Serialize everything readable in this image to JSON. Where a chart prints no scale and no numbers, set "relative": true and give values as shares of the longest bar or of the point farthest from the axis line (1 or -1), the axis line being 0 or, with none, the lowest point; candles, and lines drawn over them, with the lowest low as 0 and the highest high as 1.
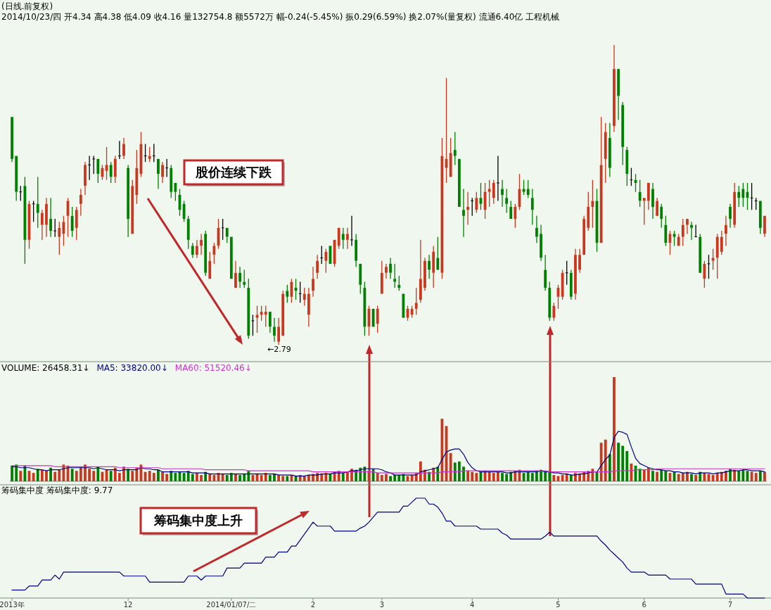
{
  "chart_data": [
    {
      "type": "candlestick",
      "relative": true,
      "tick_labels": false,
      "title": "(日线.前复权)",
      "subtitle": "2014/10/23/四 开4.34 高4.38 低4.09 收4.16 量132754.8 额5572万 幅-0.24(-5.45%) 振0.29(6.59%) 换2.07%(量复权) 流通6.40亿 工程机械",
      "annotations": [
        "股价连续下跌",
        "←2.79"
      ],
      "categories": [
        null,
        null,
        null,
        null,
        null,
        null,
        null,
        null,
        null,
        null,
        null,
        null,
        null,
        null,
        null,
        null,
        null,
        null,
        null,
        null,
        null,
        null,
        null,
        null,
        null,
        null,
        null,
        null,
        null,
        null,
        null,
        null,
        null,
        null,
        null,
        null,
        null,
        null,
        null,
        null,
        null,
        null,
        null,
        null,
        null,
        null,
        null,
        null,
        null,
        null,
        null,
        null,
        null,
        null,
        null,
        null,
        null,
        null,
        null,
        null,
        null,
        null,
        null,
        null,
        null,
        null,
        null,
        null,
        null,
        null,
        null,
        null,
        null,
        null,
        null,
        null,
        null,
        null,
        null,
        null,
        null,
        null,
        null,
        null,
        null,
        null,
        null,
        null,
        null,
        null,
        null,
        null,
        null,
        null,
        null,
        null,
        null,
        null,
        null,
        null,
        null,
        null,
        null,
        null,
        null,
        null,
        null,
        null,
        null,
        null,
        null,
        null,
        null,
        null,
        null,
        null,
        null,
        null,
        null,
        null,
        null,
        null,
        null,
        null,
        null,
        null,
        null,
        null,
        null,
        null,
        null,
        null,
        null,
        null,
        null,
        null,
        null,
        null,
        null,
        null,
        null,
        null,
        null,
        null,
        null,
        null,
        null,
        null,
        null,
        null,
        null,
        null,
        null,
        null,
        null,
        null,
        null,
        null,
        null,
        null,
        null,
        null,
        null,
        null,
        null,
        null,
        null,
        null,
        null,
        null,
        null,
        null,
        null,
        null,
        null,
        null
      ],
      "ohlc": [
        [
          0.76,
          0.76,
          0.61,
          0.62
        ],
        [
          0.63,
          0.63,
          0.48,
          0.51
        ],
        [
          0.51,
          0.53,
          0.48,
          0.51
        ],
        [
          0.53,
          0.56,
          0.27,
          0.35
        ],
        [
          0.35,
          0.48,
          0.32,
          0.47
        ],
        [
          0.47,
          0.48,
          0.41,
          0.47
        ],
        [
          0.47,
          0.56,
          0.39,
          0.44
        ],
        [
          0.4,
          0.45,
          0.35,
          0.44
        ],
        [
          0.4,
          0.49,
          0.36,
          0.47
        ],
        [
          0.42,
          0.49,
          0.36,
          0.38
        ],
        [
          0.38,
          0.42,
          0.36,
          0.38
        ],
        [
          0.36,
          0.41,
          0.3,
          0.39
        ],
        [
          0.37,
          0.43,
          0.33,
          0.41
        ],
        [
          0.43,
          0.49,
          0.36,
          0.48
        ],
        [
          0.43,
          0.46,
          0.36,
          0.38
        ],
        [
          0.39,
          0.46,
          0.35,
          0.45
        ],
        [
          0.47,
          0.52,
          0.43,
          0.5
        ],
        [
          0.53,
          0.61,
          0.5,
          0.6
        ],
        [
          0.6,
          0.63,
          0.55,
          0.6
        ],
        [
          0.62,
          0.63,
          0.57,
          0.62
        ],
        [
          0.62,
          0.62,
          0.54,
          0.57
        ],
        [
          0.56,
          0.6,
          0.55,
          0.59
        ],
        [
          0.58,
          0.66,
          0.55,
          0.6
        ],
        [
          0.6,
          0.61,
          0.54,
          0.56
        ],
        [
          0.56,
          0.63,
          0.54,
          0.62
        ],
        [
          0.63,
          0.68,
          0.62,
          0.63
        ],
        [
          0.63,
          0.69,
          0.62,
          0.67
        ],
        [
          0.59,
          0.6,
          0.36,
          0.42
        ],
        [
          0.37,
          0.55,
          0.37,
          0.53
        ],
        [
          0.5,
          0.65,
          0.47,
          0.59
        ],
        [
          0.57,
          0.71,
          0.56,
          0.67
        ],
        [
          0.63,
          0.67,
          0.61,
          0.63
        ],
        [
          0.62,
          0.66,
          0.61,
          0.63
        ],
        [
          0.63,
          0.67,
          0.61,
          0.63
        ],
        [
          0.62,
          0.62,
          0.52,
          0.57
        ],
        [
          0.56,
          0.61,
          0.54,
          0.6
        ],
        [
          0.59,
          0.62,
          0.56,
          0.59
        ],
        [
          0.59,
          0.6,
          0.49,
          0.51
        ],
        [
          0.54,
          0.54,
          0.48,
          0.51
        ],
        [
          0.5,
          0.52,
          0.43,
          0.45
        ],
        [
          0.47,
          0.48,
          0.41,
          0.42
        ],
        [
          0.42,
          0.43,
          0.32,
          0.35
        ],
        [
          0.33,
          0.34,
          0.29,
          0.3
        ],
        [
          0.3,
          0.35,
          0.29,
          0.33
        ],
        [
          0.33,
          0.37,
          0.3,
          0.35
        ],
        [
          0.37,
          0.38,
          0.23,
          0.24
        ],
        [
          0.22,
          0.31,
          0.22,
          0.28
        ],
        [
          0.3,
          0.34,
          0.27,
          0.33
        ],
        [
          0.33,
          0.42,
          0.32,
          0.39
        ],
        [
          0.39,
          0.42,
          0.35,
          0.39
        ],
        [
          0.39,
          0.39,
          0.34,
          0.36
        ],
        [
          0.36,
          0.36,
          0.22,
          0.22
        ],
        [
          0.19,
          0.28,
          0.19,
          0.24
        ],
        [
          0.24,
          0.26,
          0.19,
          0.21
        ],
        [
          0.21,
          0.25,
          0.19,
          0.2
        ],
        [
          0.19,
          0.22,
          0.02,
          0.03
        ],
        [
          0.08,
          0.1,
          0.03,
          0.08
        ],
        [
          0.09,
          0.13,
          0.04,
          0.1
        ],
        [
          0.1,
          0.13,
          0.08,
          0.11
        ],
        [
          0.1,
          0.13,
          0.06,
          0.11
        ],
        [
          0.11,
          0.11,
          0.04,
          0.06
        ],
        [
          0.06,
          0.09,
          0.01,
          0.03
        ],
        [
          0.01,
          0.09,
          0,
          0.06
        ],
        [
          0.03,
          0.18,
          0.03,
          0.17
        ],
        [
          0.18,
          0.2,
          0.14,
          0.16
        ],
        [
          0.16,
          0.22,
          0.14,
          0.21
        ],
        [
          0.19,
          0.22,
          0.15,
          0.18
        ],
        [
          0.17,
          0.21,
          0.14,
          0.17
        ],
        [
          0.15,
          0.19,
          0.13,
          0.17
        ],
        [
          0.1,
          0.19,
          0.06,
          0.17
        ],
        [
          0.18,
          0.26,
          0.16,
          0.22
        ],
        [
          0.24,
          0.3,
          0.22,
          0.28
        ],
        [
          0.29,
          0.33,
          0.27,
          0.29
        ],
        [
          0.28,
          0.32,
          0.24,
          0.31
        ],
        [
          0.33,
          0.33,
          0.27,
          0.27
        ],
        [
          0.27,
          0.35,
          0.26,
          0.35
        ],
        [
          0.33,
          0.39,
          0.32,
          0.39
        ],
        [
          0.37,
          0.39,
          0.32,
          0.35
        ],
        [
          0.35,
          0.39,
          0.32,
          0.37
        ],
        [
          0.35,
          0.43,
          0.33,
          0.35
        ],
        [
          0.35,
          0.37,
          0.26,
          0.28
        ],
        [
          0.27,
          0.27,
          0.17,
          0.2
        ],
        [
          0.19,
          0.21,
          0.03,
          0.06
        ],
        [
          0.06,
          0.13,
          0.03,
          0.12
        ],
        [
          0.12,
          0.12,
          0.06,
          0.06
        ],
        [
          0.07,
          0.13,
          0.04,
          0.12
        ],
        [
          0.17,
          0.28,
          0.17,
          0.24
        ],
        [
          0.24,
          0.27,
          0.22,
          0.26
        ],
        [
          0.27,
          0.29,
          0.22,
          0.24
        ],
        [
          0.22,
          0.27,
          0.19,
          0.21
        ],
        [
          0.2,
          0.23,
          0.18,
          0.19
        ],
        [
          0.17,
          0.17,
          0.09,
          0.09
        ],
        [
          0.09,
          0.13,
          0.08,
          0.12
        ],
        [
          0.1,
          0.13,
          0.09,
          0.12
        ],
        [
          0.12,
          0.19,
          0.1,
          0.14
        ],
        [
          0.15,
          0.35,
          0.14,
          0.22
        ],
        [
          0.19,
          0.29,
          0.18,
          0.28
        ],
        [
          0.28,
          0.3,
          0.22,
          0.25
        ],
        [
          0.24,
          0.33,
          0.19,
          0.31
        ],
        [
          0.29,
          0.36,
          0.25,
          0.25
        ],
        [
          0.24,
          0.69,
          0.22,
          0.63
        ],
        [
          0.59,
          0.89,
          0.54,
          0.62
        ],
        [
          0.56,
          0.69,
          0.56,
          0.64
        ],
        [
          0.65,
          0.71,
          0.6,
          0.63
        ],
        [
          0.62,
          0.62,
          0.46,
          0.46
        ],
        [
          0.45,
          0.52,
          0.36,
          0.43
        ],
        [
          0.45,
          0.51,
          0.4,
          0.46
        ],
        [
          0.48,
          0.49,
          0.43,
          0.48
        ],
        [
          0.45,
          0.51,
          0.44,
          0.49
        ],
        [
          0.49,
          0.54,
          0.45,
          0.47
        ],
        [
          0.45,
          0.54,
          0.42,
          0.51
        ],
        [
          0.51,
          0.55,
          0.46,
          0.52
        ],
        [
          0.49,
          0.55,
          0.47,
          0.54
        ],
        [
          0.54,
          0.63,
          0.48,
          0.54
        ],
        [
          0.52,
          0.55,
          0.46,
          0.5
        ],
        [
          0.49,
          0.52,
          0.44,
          0.47
        ],
        [
          0.46,
          0.48,
          0.42,
          0.42
        ],
        [
          0.42,
          0.47,
          0.39,
          0.46
        ],
        [
          0.46,
          0.57,
          0.45,
          0.52
        ],
        [
          0.52,
          0.55,
          0.5,
          0.51
        ],
        [
          0.52,
          0.55,
          0.49,
          0.5
        ],
        [
          0.49,
          0.52,
          0.4,
          0.45
        ],
        [
          0.39,
          0.43,
          0.34,
          0.36
        ],
        [
          0.37,
          0.4,
          0.28,
          0.29
        ],
        [
          0.25,
          0.3,
          0.18,
          0.19
        ],
        [
          0.19,
          0.21,
          0.08,
          0.09
        ],
        [
          0.09,
          0.14,
          0.08,
          0.13
        ],
        [
          0.16,
          0.2,
          0.12,
          0.19
        ],
        [
          0.16,
          0.25,
          0.15,
          0.24
        ],
        [
          0.24,
          0.28,
          0.2,
          0.24
        ],
        [
          0.24,
          0.25,
          0.15,
          0.16
        ],
        [
          0.17,
          0.32,
          0.15,
          0.3
        ],
        [
          0.25,
          0.32,
          0.24,
          0.3
        ],
        [
          0.3,
          0.43,
          0.3,
          0.42
        ],
        [
          0.39,
          0.51,
          0.38,
          0.46
        ],
        [
          0.46,
          0.55,
          0.39,
          0.48
        ],
        [
          0.48,
          0.52,
          0.31,
          0.34
        ],
        [
          0.34,
          0.76,
          0.34,
          0.6
        ],
        [
          0.62,
          0.74,
          0.54,
          0.71
        ],
        [
          0.69,
          0.74,
          0.56,
          0.59
        ],
        [
          0.73,
          1.0,
          0.71,
          0.92
        ],
        [
          0.92,
          0.92,
          0.75,
          0.83
        ],
        [
          0.8,
          0.81,
          0.6,
          0.66
        ],
        [
          0.65,
          0.66,
          0.53,
          0.57
        ],
        [
          0.55,
          0.59,
          0.53,
          0.55
        ],
        [
          0.55,
          0.57,
          0.51,
          0.54
        ],
        [
          0.51,
          0.55,
          0.46,
          0.48
        ],
        [
          0.48,
          0.49,
          0.4,
          0.49
        ],
        [
          0.48,
          0.54,
          0.45,
          0.54
        ],
        [
          0.52,
          0.54,
          0.42,
          0.46
        ],
        [
          0.43,
          0.49,
          0.43,
          0.48
        ],
        [
          0.46,
          0.47,
          0.39,
          0.42
        ],
        [
          0.4,
          0.43,
          0.33,
          0.34
        ],
        [
          0.34,
          0.38,
          0.3,
          0.37
        ],
        [
          0.37,
          0.38,
          0.33,
          0.36
        ],
        [
          0.33,
          0.37,
          0.33,
          0.36
        ],
        [
          0.36,
          0.42,
          0.33,
          0.4
        ],
        [
          0.4,
          0.42,
          0.37,
          0.42
        ],
        [
          0.4,
          0.41,
          0.35,
          0.39
        ],
        [
          0.36,
          0.4,
          0.36,
          0.36
        ],
        [
          0.36,
          0.37,
          0.24,
          0.24
        ],
        [
          0.22,
          0.28,
          0.19,
          0.27
        ],
        [
          0.27,
          0.3,
          0.22,
          0.27
        ],
        [
          0.28,
          0.32,
          0.25,
          0.29
        ],
        [
          0.29,
          0.37,
          0.22,
          0.36
        ],
        [
          0.31,
          0.38,
          0.3,
          0.36
        ],
        [
          0.37,
          0.43,
          0.33,
          0.4
        ],
        [
          0.46,
          0.47,
          0.39,
          0.42
        ],
        [
          0.4,
          0.54,
          0.39,
          0.51
        ],
        [
          0.51,
          0.53,
          0.46,
          0.49
        ],
        [
          0.52,
          0.54,
          0.46,
          0.49
        ],
        [
          0.51,
          0.54,
          0.45,
          0.49
        ],
        [
          0.49,
          0.54,
          0.45,
          0.49
        ],
        [
          0.48,
          0.49,
          0.45,
          0.48
        ],
        [
          0.48,
          0.48,
          0.37,
          0.39
        ],
        [
          0.37,
          0.43,
          0.36,
          0.43
        ]
      ]
    },
    {
      "type": "bar",
      "relative": true,
      "tick_labels": false,
      "title": "VOLUME: 26458.31↓",
      "annotations": [
        "MA5: 33820.00↓",
        "MA60: 51520.46↓"
      ],
      "categories": [
        null,
        null,
        null,
        null,
        null,
        null,
        null,
        null,
        null,
        null,
        null,
        null,
        null,
        null,
        null,
        null,
        null,
        null,
        null,
        null,
        null,
        null,
        null,
        null,
        null,
        null,
        null,
        null,
        null,
        null,
        null,
        null,
        null,
        null,
        null,
        null,
        null,
        null,
        null,
        null,
        null,
        null,
        null,
        null,
        null,
        null,
        null,
        null,
        null,
        null,
        null,
        null,
        null,
        null,
        null,
        null,
        null,
        null,
        null,
        null,
        null,
        null,
        null,
        null,
        null,
        null,
        null,
        null,
        null,
        null,
        null,
        null,
        null,
        null,
        null,
        null,
        null,
        null,
        null,
        null,
        null,
        null,
        null,
        null,
        null,
        null,
        null,
        null,
        null,
        null,
        null,
        null,
        null,
        null,
        null,
        null,
        null,
        null,
        null,
        null,
        null,
        null,
        null,
        null,
        null,
        null,
        null,
        null,
        null,
        null,
        null,
        null,
        null,
        null,
        null,
        null,
        null,
        null,
        null,
        null,
        null,
        null,
        null,
        null,
        null,
        null,
        null,
        null,
        null,
        null,
        null,
        null,
        null,
        null,
        null,
        null,
        null,
        null,
        null,
        null,
        null,
        null,
        null,
        null,
        null,
        null,
        null,
        null,
        null,
        null,
        null,
        null,
        null,
        null,
        null,
        null,
        null,
        null,
        null,
        null,
        null,
        null,
        null,
        null,
        null,
        null,
        null,
        null,
        null,
        null,
        null,
        null,
        null,
        null,
        null,
        null
      ],
      "series": [
        {
          "colors": [
            "#008000",
            "#008000",
            "#c8371e",
            "#008000",
            "#c8371e",
            "#c8371e",
            "#008000",
            "#c8371e",
            "#c8371e",
            "#008000",
            "#c8371e",
            "#c8371e",
            "#c8371e",
            "#c8371e",
            "#008000",
            "#c8371e",
            "#c8371e",
            "#c8371e",
            "#c8371e",
            "#c8371e",
            "#008000",
            "#c8371e",
            "#c8371e",
            "#008000",
            "#c8371e",
            "#c8371e",
            "#c8371e",
            "#008000",
            "#c8371e",
            "#c8371e",
            "#c8371e",
            "#c8371e",
            "#c8371e",
            "#c8371e",
            "#008000",
            "#c8371e",
            "#c8371e",
            "#008000",
            "#008000",
            "#008000",
            "#008000",
            "#008000",
            "#008000",
            "#c8371e",
            "#c8371e",
            "#008000",
            "#c8371e",
            "#c8371e",
            "#c8371e",
            "#c8371e",
            "#008000",
            "#008000",
            "#c8371e",
            "#008000",
            "#008000",
            "#008000",
            "#c8371e",
            "#c8371e",
            "#c8371e",
            "#c8371e",
            "#008000",
            "#008000",
            "#c8371e",
            "#c8371e",
            "#008000",
            "#c8371e",
            "#008000",
            "#c8371e",
            "#c8371e",
            "#c8371e",
            "#c8371e",
            "#c8371e",
            "#c8371e",
            "#c8371e",
            "#008000",
            "#c8371e",
            "#c8371e",
            "#008000",
            "#c8371e",
            "#c8371e",
            "#008000",
            "#008000",
            "#008000",
            "#c8371e",
            "#008000",
            "#c8371e",
            "#c8371e",
            "#c8371e",
            "#008000",
            "#008000",
            "#008000",
            "#008000",
            "#c8371e",
            "#c8371e",
            "#c8371e",
            "#c8371e",
            "#c8371e",
            "#008000",
            "#c8371e",
            "#008000",
            "#c8371e",
            "#c8371e",
            "#c8371e",
            "#008000",
            "#008000",
            "#008000",
            "#c8371e",
            "#c8371e",
            "#c8371e",
            "#008000",
            "#c8371e",
            "#c8371e",
            "#c8371e",
            "#c8371e",
            "#008000",
            "#008000",
            "#008000",
            "#c8371e",
            "#c8371e",
            "#008000",
            "#008000",
            "#008000",
            "#008000",
            "#008000",
            "#008000",
            "#008000",
            "#c8371e",
            "#c8371e",
            "#c8371e",
            "#c8371e",
            "#008000",
            "#c8371e",
            "#c8371e",
            "#c8371e",
            "#c8371e",
            "#c8371e",
            "#008000",
            "#c8371e",
            "#c8371e",
            "#008000",
            "#c8371e",
            "#008000",
            "#008000",
            "#008000",
            "#c8371e",
            "#008000",
            "#008000",
            "#c8371e",
            "#c8371e",
            "#008000",
            "#c8371e",
            "#008000",
            "#008000",
            "#c8371e",
            "#008000",
            "#c8371e",
            "#c8371e",
            "#c8371e",
            "#008000",
            "#c8371e",
            "#008000",
            "#c8371e",
            "#c8371e",
            "#c8371e",
            "#c8371e",
            "#c8371e",
            "#c8371e",
            "#008000",
            "#c8371e",
            "#008000",
            "#008000",
            "#008000",
            "#c8371e",
            "#c8371e",
            "#008000",
            "#c8371e"
          ],
          "values": [
            0.15,
            0.16,
            0.1,
            0.15,
            0.1,
            0.08,
            0.12,
            0.11,
            0.1,
            0.13,
            0.09,
            0.11,
            0.16,
            0.15,
            0.12,
            0.1,
            0.13,
            0.16,
            0.12,
            0.1,
            0.14,
            0.09,
            0.11,
            0.1,
            0.13,
            0.08,
            0.14,
            0.12,
            0.1,
            0.13,
            0.16,
            0.09,
            0.1,
            0.08,
            0.11,
            0.09,
            0.07,
            0.1,
            0.08,
            0.09,
            0.08,
            0.1,
            0.07,
            0.08,
            0.06,
            0.09,
            0.07,
            0.06,
            0.08,
            0.07,
            0.06,
            0.08,
            0.07,
            0.06,
            0.07,
            0.1,
            0.06,
            0.07,
            0.06,
            0.08,
            0.06,
            0.07,
            0.06,
            0.05,
            0.05,
            0.06,
            0.05,
            0.06,
            0.05,
            0.06,
            0.07,
            0.08,
            0.07,
            0.08,
            0.07,
            0.09,
            0.1,
            0.08,
            0.09,
            0.12,
            0.11,
            0.13,
            0.14,
            0.1,
            0.12,
            0.08,
            0.06,
            0.07,
            0.05,
            0.06,
            0.06,
            0.07,
            0.05,
            0.06,
            0.08,
            0.19,
            0.11,
            0.09,
            0.13,
            0.14,
            0.6,
            0.53,
            0.27,
            0.18,
            0.19,
            0.14,
            0.1,
            0.09,
            0.08,
            0.09,
            0.1,
            0.09,
            0.08,
            0.09,
            0.08,
            0.07,
            0.09,
            0.1,
            0.11,
            0.08,
            0.09,
            0.08,
            0.1,
            0.11,
            0.09,
            0.1,
            0.06,
            0.05,
            0.06,
            0.07,
            0.06,
            0.08,
            0.07,
            0.09,
            0.1,
            0.12,
            0.09,
            0.37,
            0.4,
            0.26,
            1.0,
            0.37,
            0.34,
            0.29,
            0.17,
            0.15,
            0.12,
            0.11,
            0.13,
            0.1,
            0.09,
            0.11,
            0.1,
            0.08,
            0.09,
            0.07,
            0.08,
            0.09,
            0.07,
            0.06,
            0.09,
            0.08,
            0.07,
            0.06,
            0.08,
            0.09,
            0.1,
            0.12,
            0.11,
            0.1,
            0.11,
            0.1,
            0.09,
            0.08,
            0.1,
            0.09
          ]
        },
        {
          "type": "line",
          "color": "#000080",
          "values": [
            0.14,
            0.14,
            0.13,
            0.13,
            0.13,
            0.12,
            0.11,
            0.11,
            0.1,
            0.11,
            0.11,
            0.11,
            0.12,
            0.13,
            0.13,
            0.13,
            0.13,
            0.13,
            0.13,
            0.12,
            0.13,
            0.12,
            0.11,
            0.11,
            0.11,
            0.1,
            0.11,
            0.11,
            0.11,
            0.11,
            0.13,
            0.12,
            0.12,
            0.11,
            0.11,
            0.09,
            0.09,
            0.09,
            0.09,
            0.09,
            0.09,
            0.09,
            0.08,
            0.08,
            0.08,
            0.08,
            0.07,
            0.07,
            0.07,
            0.07,
            0.07,
            0.07,
            0.07,
            0.07,
            0.07,
            0.07,
            0.07,
            0.07,
            0.07,
            0.07,
            0.07,
            0.07,
            0.06,
            0.06,
            0.06,
            0.06,
            0.05,
            0.05,
            0.05,
            0.06,
            0.06,
            0.06,
            0.07,
            0.07,
            0.07,
            0.08,
            0.08,
            0.08,
            0.09,
            0.1,
            0.1,
            0.11,
            0.12,
            0.12,
            0.12,
            0.12,
            0.11,
            0.09,
            0.08,
            0.06,
            0.06,
            0.06,
            0.06,
            0.06,
            0.06,
            0.09,
            0.1,
            0.11,
            0.12,
            0.13,
            0.21,
            0.28,
            0.3,
            0.31,
            0.31,
            0.26,
            0.18,
            0.13,
            0.1,
            0.09,
            0.09,
            0.09,
            0.09,
            0.09,
            0.09,
            0.08,
            0.08,
            0.09,
            0.09,
            0.09,
            0.09,
            0.09,
            0.09,
            0.1,
            0.09,
            0.09,
            0.08,
            0.08,
            0.07,
            0.07,
            0.06,
            0.06,
            0.07,
            0.07,
            0.08,
            0.09,
            0.09,
            0.15,
            0.21,
            0.25,
            0.42,
            0.48,
            0.47,
            0.45,
            0.33,
            0.22,
            0.17,
            0.15,
            0.13,
            0.12,
            0.11,
            0.11,
            0.1,
            0.1,
            0.09,
            0.09,
            0.08,
            0.08,
            0.08,
            0.07,
            0.08,
            0.08,
            0.08,
            0.07,
            0.08,
            0.08,
            0.09,
            0.1,
            0.1,
            0.1,
            0.11,
            0.11,
            0.1,
            0.1,
            0.1,
            0.09
          ]
        },
        {
          "type": "line",
          "color": "#cc33cc",
          "values": [
            0.15,
            0.15,
            0.15,
            0.15,
            0.15,
            0.15,
            0.15,
            0.15,
            0.15,
            0.15,
            0.14,
            0.14,
            0.14,
            0.14,
            0.14,
            0.14,
            0.14,
            0.14,
            0.14,
            0.14,
            0.14,
            0.14,
            0.14,
            0.14,
            0.14,
            0.13,
            0.13,
            0.13,
            0.13,
            0.13,
            0.13,
            0.13,
            0.13,
            0.13,
            0.13,
            0.12,
            0.12,
            0.12,
            0.12,
            0.12,
            0.12,
            0.12,
            0.12,
            0.12,
            0.12,
            0.11,
            0.11,
            0.11,
            0.11,
            0.11,
            0.11,
            0.11,
            0.11,
            0.11,
            0.11,
            0.1,
            0.1,
            0.1,
            0.1,
            0.1,
            0.1,
            0.1,
            0.1,
            0.1,
            0.1,
            0.1,
            0.1,
            0.1,
            0.1,
            0.1,
            0.09,
            0.09,
            0.09,
            0.09,
            0.09,
            0.09,
            0.09,
            0.09,
            0.09,
            0.09,
            0.09,
            0.09,
            0.09,
            0.09,
            0.09,
            0.08,
            0.08,
            0.08,
            0.08,
            0.08,
            0.08,
            0.08,
            0.08,
            0.08,
            0.08,
            0.08,
            0.08,
            0.08,
            0.08,
            0.08,
            0.09,
            0.09,
            0.09,
            0.09,
            0.09,
            0.1,
            0.1,
            0.1,
            0.1,
            0.1,
            0.1,
            0.1,
            0.1,
            0.1,
            0.1,
            0.1,
            0.1,
            0.1,
            0.1,
            0.1,
            0.1,
            0.1,
            0.1,
            0.1,
            0.1,
            0.09,
            0.09,
            0.09,
            0.09,
            0.09,
            0.09,
            0.09,
            0.09,
            0.09,
            0.09,
            0.09,
            0.09,
            0.09,
            0.09,
            0.09,
            0.1,
            0.1,
            0.1,
            0.1,
            0.1,
            0.11,
            0.11,
            0.11,
            0.11,
            0.11,
            0.12,
            0.12,
            0.12,
            0.12,
            0.12,
            0.12,
            0.12,
            0.12,
            0.12,
            0.12,
            0.12,
            0.12,
            0.12,
            0.12,
            0.12,
            0.12,
            0.12,
            0.12,
            0.12,
            0.12,
            0.12,
            0.12,
            0.12,
            0.12,
            0.12,
            0.12
          ]
        }
      ]
    },
    {
      "type": "line",
      "relative": true,
      "title": "筹码集中度 筹码集中度: 9.77",
      "annotations": [
        "筹码集中度上升"
      ],
      "color": "#000080",
      "categories": [
        "2013年",
        null,
        null,
        null,
        null,
        null,
        null,
        null,
        null,
        null,
        null,
        null,
        null,
        null,
        null,
        null,
        null,
        null,
        null,
        null,
        null,
        null,
        null,
        null,
        null,
        null,
        null,
        "12",
        null,
        null,
        null,
        null,
        null,
        null,
        null,
        null,
        null,
        null,
        null,
        null,
        null,
        null,
        null,
        null,
        null,
        null,
        null,
        null,
        null,
        null,
        null,
        "2014/01/07/二",
        null,
        null,
        null,
        null,
        null,
        null,
        null,
        null,
        null,
        null,
        null,
        null,
        null,
        null,
        null,
        null,
        null,
        null,
        "2",
        null,
        null,
        null,
        null,
        null,
        null,
        null,
        null,
        null,
        null,
        null,
        null,
        null,
        null,
        null,
        "3",
        null,
        null,
        null,
        null,
        null,
        null,
        null,
        null,
        null,
        null,
        null,
        null,
        null,
        null,
        null,
        null,
        null,
        null,
        null,
        null,
        "4",
        null,
        null,
        null,
        null,
        null,
        null,
        null,
        null,
        null,
        null,
        null,
        null,
        null,
        null,
        null,
        null,
        null,
        null,
        null,
        "5",
        null,
        null,
        null,
        null,
        null,
        null,
        null,
        null,
        null,
        null,
        null,
        null,
        null,
        null,
        null,
        null,
        null,
        null,
        null,
        "6",
        null,
        null,
        null,
        null,
        null,
        null,
        null,
        null,
        null,
        null,
        null,
        null,
        null,
        null,
        null,
        null,
        null,
        null,
        null,
        "7",
        null,
        null,
        null,
        null,
        null,
        null,
        null,
        null
      ],
      "values": [
        0.08,
        0.08,
        0.08,
        0.08,
        0.12,
        0.12,
        0.12,
        0.18,
        0.18,
        0.18,
        0.23,
        0.19,
        0.26,
        0.26,
        0.26,
        0.26,
        0.26,
        0.26,
        0.26,
        0.26,
        0.26,
        0.26,
        0.26,
        0.26,
        0.26,
        0.26,
        0.22,
        0.22,
        0.22,
        0.22,
        0.22,
        0.22,
        0.16,
        0.16,
        0.16,
        0.16,
        0.16,
        0.16,
        0.16,
        0.16,
        0.16,
        0.22,
        0.22,
        0.22,
        0.18,
        0.22,
        0.22,
        0.22,
        0.22,
        0.22,
        0.3,
        0.3,
        0.3,
        0.3,
        0.35,
        0.35,
        0.35,
        0.35,
        0.35,
        0.41,
        0.41,
        0.41,
        0.46,
        0.46,
        0.46,
        0.52,
        0.52,
        0.58,
        0.64,
        0.7,
        0.76,
        0.72,
        0.72,
        0.72,
        0.72,
        0.67,
        0.67,
        0.67,
        0.67,
        0.67,
        0.67,
        0.7,
        0.72,
        0.76,
        0.81,
        0.86,
        0.86,
        0.86,
        0.86,
        0.86,
        0.86,
        0.92,
        0.92,
        0.96,
        1.0,
        1.0,
        1.0,
        0.94,
        0.94,
        0.91,
        0.85,
        0.77,
        0.77,
        0.72,
        0.72,
        0.72,
        0.72,
        0.72,
        0.72,
        0.69,
        0.69,
        0.69,
        0.69,
        0.69,
        0.65,
        0.63,
        0.59,
        0.59,
        0.59,
        0.59,
        0.59,
        0.59,
        0.59,
        0.59,
        0.62,
        0.66,
        0.62,
        0.62,
        0.62,
        0.62,
        0.62,
        0.62,
        0.62,
        0.62,
        0.62,
        0.62,
        0.62,
        0.57,
        0.53,
        0.48,
        0.44,
        0.4,
        0.36,
        0.3,
        0.26,
        0.26,
        0.26,
        0.26,
        0.23,
        0.23,
        0.23,
        0.23,
        0.23,
        0.19,
        0.19,
        0.19,
        0.19,
        0.19,
        0.19,
        0.14,
        0.14,
        0.14,
        0.14,
        0.14,
        0.14,
        0.14,
        0.04,
        0.04,
        0.04,
        0.04,
        0.04,
        0,
        0,
        0,
        0,
        0
      ]
    }
  ]
}
